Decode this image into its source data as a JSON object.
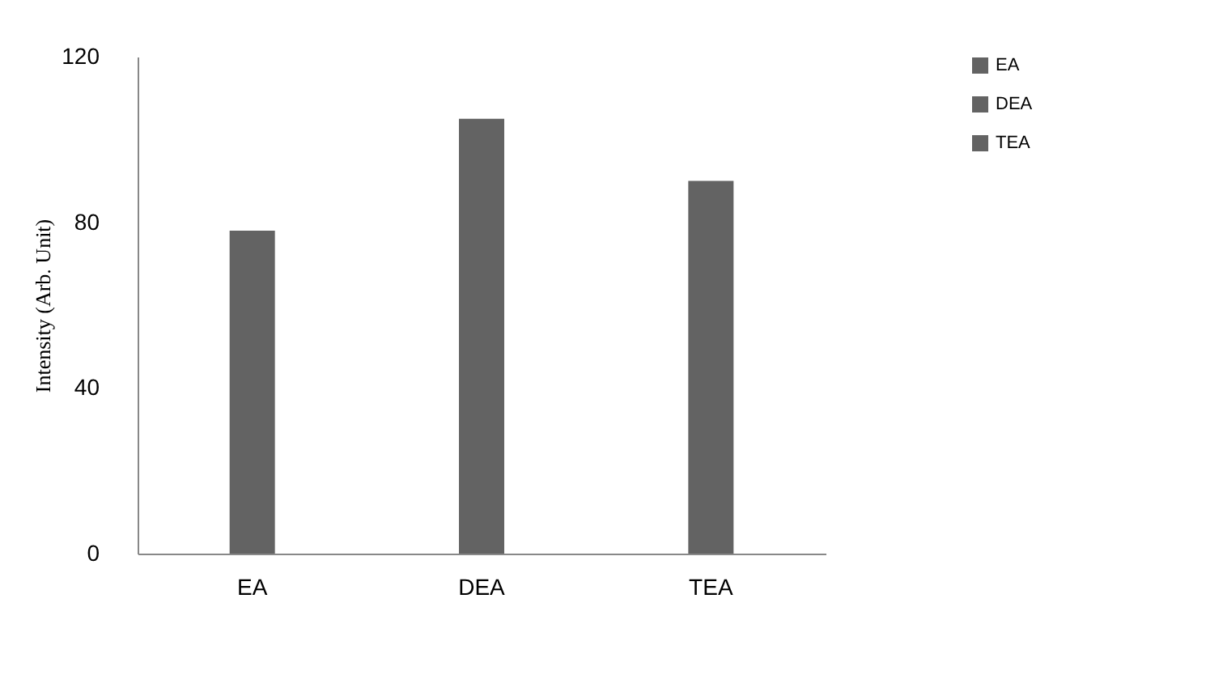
{
  "chart_data": {
    "type": "bar",
    "ylabel": "Intensity (Arb. Unit)",
    "categories": [
      "EA",
      "DEA",
      "TEA"
    ],
    "series": [
      {
        "name": "EA",
        "color": "#636363",
        "values": [
          78,
          null,
          null
        ]
      },
      {
        "name": "DEA",
        "color": "#636363",
        "values": [
          null,
          105,
          null
        ]
      },
      {
        "name": "TEA",
        "color": "#636363",
        "values": [
          null,
          null,
          90
        ]
      }
    ],
    "ylim": [
      0,
      120
    ],
    "yticks": [
      0,
      40,
      80,
      120
    ],
    "grid": false,
    "legend": "top right"
  }
}
